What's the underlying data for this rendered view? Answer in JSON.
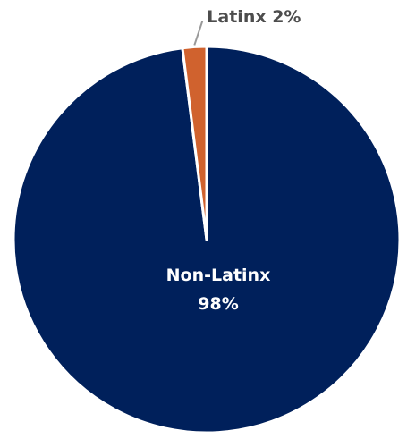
{
  "chart_data": {
    "type": "pie",
    "title": "",
    "slices": [
      {
        "label": "Non-Latinx",
        "value": 98,
        "value_label": "98%",
        "color": "#00205b",
        "label_position": "inside"
      },
      {
        "label": "Latinx",
        "value": 2,
        "value_label": "2%",
        "color": "#d0622e",
        "label_position": "outside"
      }
    ],
    "label_text": {
      "non_latinx_name": "Non-Latinx",
      "non_latinx_pct": "98%",
      "latinx_full": "Latinx 2%"
    }
  }
}
